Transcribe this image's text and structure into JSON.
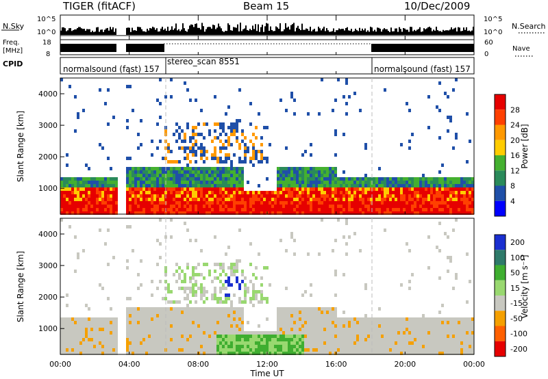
{
  "header": {
    "title": "TIGER (fitACF)",
    "beam": "Beam 15",
    "date": "10/Dec/2009"
  },
  "strips": {
    "nsky_label": "N.Sky",
    "nsearch_label": "N.Search",
    "freq_label_line1": "Freq.",
    "freq_label_line2": "[MHz]",
    "nave_label": "Nave",
    "cpid_label": "CPID",
    "nsky_ticks": [
      "10^5",
      "10^0"
    ],
    "nsearch_ticks": [
      "10^5",
      "10^0"
    ],
    "freq_ticks": [
      "18",
      "8"
    ],
    "nave_ticks": [
      "60",
      "0"
    ]
  },
  "modes": [
    {
      "label": "normalsound (fast) 157",
      "start_hour": 0
    },
    {
      "label": "stereo_scan 8551",
      "start_hour": 6
    },
    {
      "label": "normalsound (fast) 157",
      "start_hour": 18
    }
  ],
  "x_axis": {
    "label": "Time UT",
    "range_hours": [
      0,
      24
    ],
    "tick_labels": [
      "00:00",
      "04:00",
      "08:00",
      "12:00",
      "16:00",
      "20:00",
      "00:00"
    ]
  },
  "panels": {
    "power": {
      "ylabel": "Slant Range [km]",
      "y_ticks": [
        "4000",
        "3000",
        "2000",
        "1000"
      ],
      "colorbar_title": "Power [dB]",
      "colorbar_labels": [
        "28",
        "24",
        "20",
        "16",
        "12",
        "8",
        "4"
      ],
      "colors": [
        "#e60000",
        "#ff4000",
        "#ff9900",
        "#ffcc00",
        "#44b030",
        "#2a8a5a",
        "#1f4fa8",
        "#0000ff"
      ]
    },
    "velocity": {
      "ylabel": "Slant Range [km]",
      "y_ticks": [
        "4000",
        "3000",
        "2000",
        "1000"
      ],
      "colorbar_title": "Velocity [m s⁻¹]",
      "colorbar_labels": [
        "200",
        "100",
        "50",
        "15",
        "-15",
        "-50",
        "-100",
        "-200"
      ],
      "colors": [
        "#1a2fd0",
        "#2e7a6a",
        "#3fae30",
        "#99d870",
        "#c8c8c0",
        "#f5a000",
        "#ff6000",
        "#e60000"
      ]
    }
  },
  "chart_data": {
    "type": "heatmap",
    "title": "TIGER (fitACF)",
    "xlabel": "Time UT",
    "ylabel": "Slant Range [km]",
    "xlim_hours": [
      0,
      24
    ],
    "ylim_km": [
      180,
      4500
    ],
    "data_gap_hours": [
      3.2,
      3.8
    ],
    "power_db_scale": [
      4,
      8,
      12,
      16,
      20,
      24,
      28
    ],
    "velocity_scale_ms": [
      -200,
      -100,
      -50,
      -15,
      15,
      50,
      100,
      200
    ],
    "mode_changes_hours": [
      6,
      18
    ]
  }
}
